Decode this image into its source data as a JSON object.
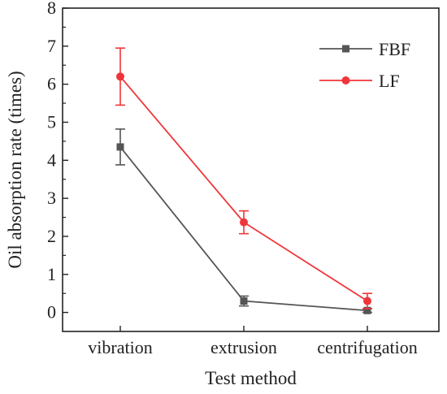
{
  "chart_data": {
    "type": "line",
    "xlabel": "Test method",
    "ylabel": "Oil absorption rate (times)",
    "categories": [
      "vibration",
      "extrusion",
      "centrifugation"
    ],
    "ylim": [
      -0.5,
      8
    ],
    "yticks": [
      0,
      1,
      2,
      3,
      4,
      5,
      6,
      7,
      8
    ],
    "grid": false,
    "legend_position": "top-right",
    "series": [
      {
        "name": "FBF",
        "color": "#555555",
        "marker": "square",
        "values": [
          4.35,
          0.3,
          0.05
        ],
        "errors": [
          0.47,
          0.13,
          0.05
        ]
      },
      {
        "name": "LF",
        "color": "#f0353a",
        "marker": "circle",
        "values": [
          6.2,
          2.37,
          0.3
        ],
        "errors": [
          0.75,
          0.3,
          0.2
        ]
      }
    ]
  }
}
